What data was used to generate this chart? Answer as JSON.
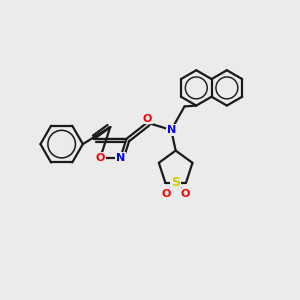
{
  "background_color": "#EBEBEB",
  "bond_color": "#1a1a1a",
  "bond_width": 1.6,
  "N_color": "#0000FF",
  "O_color": "#FF0000",
  "S_color": "#CCCC00",
  "font_size_atom": 8,
  "fig_width": 3.0,
  "fig_height": 3.0,
  "dpi": 100,
  "xlim": [
    0,
    10
  ],
  "ylim": [
    0,
    10
  ]
}
